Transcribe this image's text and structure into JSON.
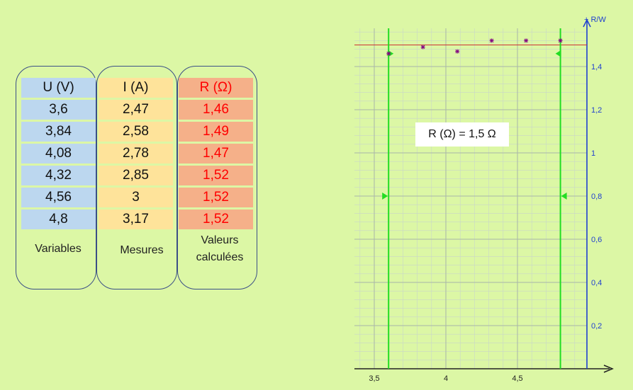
{
  "table": {
    "headers": {
      "u": "U (V)",
      "i": "I (A)",
      "r": "R (Ω)"
    },
    "rows": [
      {
        "u": "3,6",
        "i": "2,47",
        "r": "1,46"
      },
      {
        "u": "3,84",
        "i": "2,58",
        "r": "1,49"
      },
      {
        "u": "4,08",
        "i": "2,78",
        "r": "1,47"
      },
      {
        "u": "4,32",
        "i": "2,85",
        "r": "1,52"
      },
      {
        "u": "4,56",
        "i": "3",
        "r": "1,52"
      },
      {
        "u": "4,8",
        "i": "3,17",
        "r": "1,52"
      }
    ],
    "captions": {
      "u": "Variables",
      "i": "Mesures",
      "r1": "Valeurs",
      "r2": "calculées"
    },
    "colors": {
      "u": "#bcd7ef",
      "i": "#fee39a",
      "r": "#f5b089",
      "r_text": "#ff0000"
    }
  },
  "result_label": "R (Ω) = 1,5 Ω",
  "chart_data": {
    "type": "scatter",
    "y_axis_label": "+ R/W",
    "x_ticks": [
      "3,5",
      "4",
      "4,5"
    ],
    "y_ticks": [
      "0,2",
      "0,4",
      "0,6",
      "0,8",
      "1",
      "1,2",
      "1,4"
    ],
    "xlim": [
      3.3,
      5.2
    ],
    "ylim": [
      0,
      1.57
    ],
    "grid": true,
    "points": [
      {
        "x": 3.6,
        "y": 1.46
      },
      {
        "x": 3.84,
        "y": 1.49
      },
      {
        "x": 4.08,
        "y": 1.47
      },
      {
        "x": 4.32,
        "y": 1.52
      },
      {
        "x": 4.56,
        "y": 1.52
      },
      {
        "x": 4.8,
        "y": 1.52
      }
    ],
    "reference_line_y": 1.5,
    "cursor_x": [
      3.6,
      4.8
    ],
    "colors": {
      "points": "#800080",
      "reference": "#cc3333",
      "cursor": "#22dd22",
      "axis": "#1f3fd0"
    }
  }
}
